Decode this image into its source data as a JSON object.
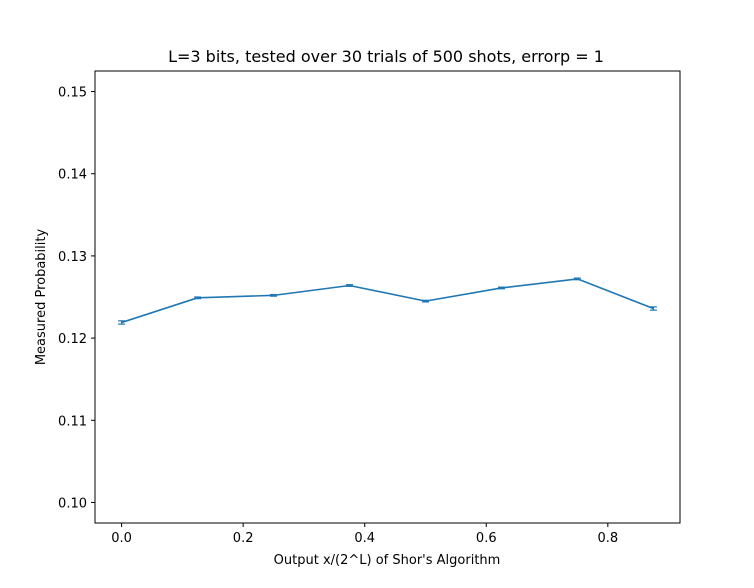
{
  "chart_data": {
    "type": "line",
    "title": "L=3 bits, tested over 30 trials of 500 shots, errorp = 1",
    "xlabel": "Output x/(2^L) of Shor's Algorithm",
    "ylabel": "Measured Probability",
    "xlim": [
      -0.04375,
      0.91875
    ],
    "ylim": [
      0.0975,
      0.1525
    ],
    "xticks": [
      0.0,
      0.2,
      0.4,
      0.6,
      0.8
    ],
    "xtick_labels": [
      "0.0",
      "0.2",
      "0.4",
      "0.6",
      "0.8"
    ],
    "yticks": [
      0.1,
      0.11,
      0.12,
      0.13,
      0.14,
      0.15
    ],
    "ytick_labels": [
      "0.10",
      "0.11",
      "0.12",
      "0.13",
      "0.14",
      "0.15"
    ],
    "grid": false,
    "series": [
      {
        "color": "#1f77b4",
        "x": [
          0.0,
          0.125,
          0.25,
          0.375,
          0.5,
          0.625,
          0.75,
          0.875
        ],
        "y": [
          0.1219,
          0.1249,
          0.1252,
          0.1264,
          0.1245,
          0.1261,
          0.1272,
          0.1236
        ],
        "yerr": [
          0.0002,
          0.0001,
          0.0001,
          0.0001,
          0.0001,
          0.0001,
          0.0001,
          0.0002
        ]
      }
    ]
  }
}
